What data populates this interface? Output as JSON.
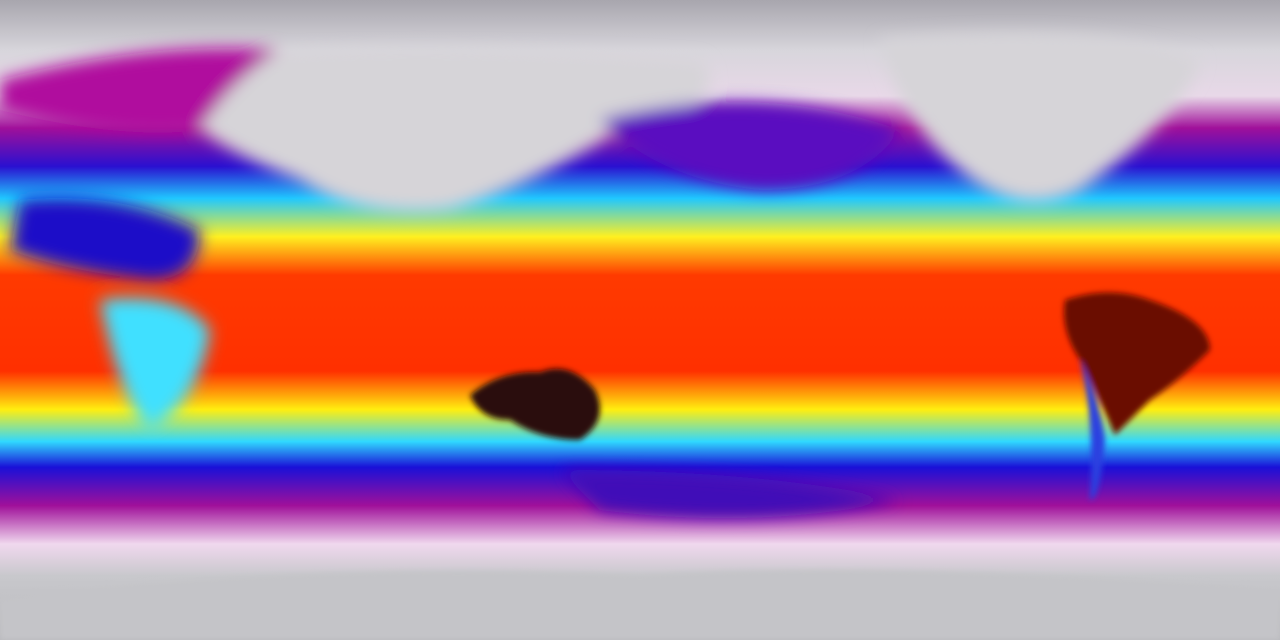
{
  "map": {
    "projection": "equirectangular",
    "colorscale": [
      "#c8c8cc",
      "#f3dff0",
      "#a0109a",
      "#1e10d8",
      "#19d8ff",
      "#fff21a",
      "#ff2a00",
      "#2a0e0e"
    ],
    "colors": {
      "polar": "#c8c8cc",
      "cold": "#a0109a",
      "cool": "#1e10d8",
      "mild": "#19d8ff",
      "warm": "#fff21a",
      "hot": "#ff2a00",
      "hottest": "#2a0e0e"
    }
  }
}
